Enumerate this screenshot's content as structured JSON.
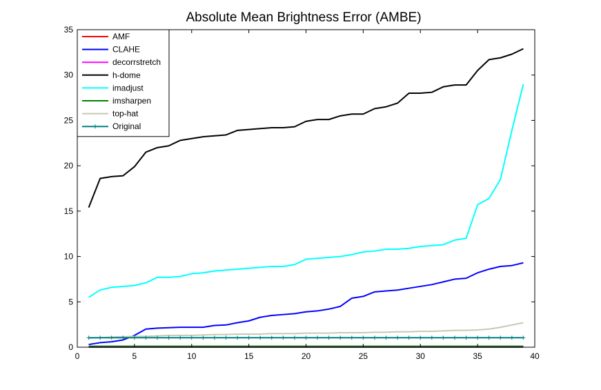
{
  "chart_data": {
    "type": "line",
    "title": "Absolute Mean Brightness Error (AMBE)",
    "xlabel": "",
    "ylabel": "",
    "xlim": [
      0,
      40
    ],
    "ylim": [
      0,
      35
    ],
    "xticks": [
      0,
      5,
      10,
      15,
      20,
      25,
      30,
      35,
      40
    ],
    "yticks": [
      0,
      5,
      10,
      15,
      20,
      25,
      30,
      35
    ],
    "grid": false,
    "legend_position": "top-left",
    "x": [
      1,
      2,
      3,
      4,
      5,
      6,
      7,
      8,
      9,
      10,
      11,
      12,
      13,
      14,
      15,
      16,
      17,
      18,
      19,
      20,
      21,
      22,
      23,
      24,
      25,
      26,
      27,
      28,
      29,
      30,
      31,
      32,
      33,
      34,
      35,
      36,
      37,
      38,
      39
    ],
    "series": [
      {
        "name": "AMF",
        "color": "#ff0000",
        "marker": "none",
        "values": [
          0.05,
          0.05,
          0.05,
          0.05,
          0.05,
          0.05,
          0.05,
          0.05,
          0.05,
          0.05,
          0.05,
          0.05,
          0.05,
          0.05,
          0.05,
          0.05,
          0.05,
          0.05,
          0.05,
          0.05,
          0.05,
          0.05,
          0.05,
          0.05,
          0.05,
          0.05,
          0.05,
          0.05,
          0.05,
          0.05,
          0.05,
          0.05,
          0.05,
          0.05,
          0.05,
          0.05,
          0.05,
          0.05,
          0.05
        ]
      },
      {
        "name": "CLAHE",
        "color": "#0000ff",
        "marker": "none",
        "values": [
          0.3,
          0.5,
          0.6,
          0.8,
          1.3,
          2.0,
          2.1,
          2.15,
          2.2,
          2.2,
          2.2,
          2.4,
          2.45,
          2.7,
          2.9,
          3.3,
          3.5,
          3.6,
          3.7,
          3.9,
          4.0,
          4.2,
          4.5,
          5.4,
          5.6,
          6.1,
          6.2,
          6.3,
          6.5,
          6.7,
          6.9,
          7.2,
          7.5,
          7.6,
          8.2,
          8.6,
          8.9,
          9.0,
          9.3
        ]
      },
      {
        "name": "decorrstretch",
        "color": "#ff00ff",
        "marker": "none",
        "values": [
          0.0,
          0.0,
          0.0,
          0.0,
          0.0,
          0.0,
          0.0,
          0.0,
          0.0,
          0.0,
          0.0,
          0.0,
          0.0,
          0.0,
          0.0,
          0.0,
          0.0,
          0.0,
          0.0,
          0.0,
          0.0,
          0.0,
          0.0,
          0.0,
          0.0,
          0.0,
          0.0,
          0.0,
          0.0,
          0.0,
          0.0,
          0.0,
          0.0,
          0.0,
          0.0,
          0.0,
          0.0,
          0.0,
          0.0
        ]
      },
      {
        "name": "h-dome",
        "color": "#000000",
        "marker": "none",
        "values": [
          15.4,
          18.6,
          18.8,
          18.9,
          19.9,
          21.5,
          22.0,
          22.2,
          22.8,
          23.0,
          23.2,
          23.3,
          23.4,
          23.9,
          24.0,
          24.1,
          24.2,
          24.2,
          24.3,
          24.9,
          25.1,
          25.1,
          25.5,
          25.7,
          25.7,
          26.3,
          26.5,
          26.9,
          28.0,
          28.0,
          28.1,
          28.7,
          28.9,
          28.9,
          30.5,
          31.7,
          31.9,
          32.3,
          32.9
        ]
      },
      {
        "name": "imadjust",
        "color": "#00ffff",
        "marker": "none",
        "values": [
          5.5,
          6.3,
          6.6,
          6.7,
          6.8,
          7.1,
          7.7,
          7.7,
          7.8,
          8.1,
          8.2,
          8.4,
          8.5,
          8.6,
          8.7,
          8.8,
          8.9,
          8.9,
          9.1,
          9.7,
          9.8,
          9.9,
          10.0,
          10.2,
          10.5,
          10.6,
          10.8,
          10.8,
          10.9,
          11.1,
          11.2,
          11.3,
          11.8,
          12.0,
          15.7,
          16.4,
          18.5,
          23.9,
          29.0
        ]
      },
      {
        "name": "imsharpen",
        "color": "#008000",
        "marker": "none",
        "values": [
          0.1,
          0.1,
          0.1,
          0.1,
          0.1,
          0.1,
          0.1,
          0.1,
          0.1,
          0.1,
          0.1,
          0.1,
          0.1,
          0.1,
          0.1,
          0.1,
          0.1,
          0.1,
          0.1,
          0.1,
          0.1,
          0.1,
          0.1,
          0.1,
          0.1,
          0.1,
          0.1,
          0.1,
          0.1,
          0.1,
          0.1,
          0.1,
          0.1,
          0.1,
          0.1,
          0.1,
          0.1,
          0.1,
          0.1
        ]
      },
      {
        "name": "top-hat",
        "color": "#c8c8b4",
        "marker": "none",
        "values": [
          1.0,
          1.05,
          1.1,
          1.15,
          1.2,
          1.2,
          1.25,
          1.3,
          1.3,
          1.3,
          1.35,
          1.4,
          1.4,
          1.45,
          1.45,
          1.45,
          1.5,
          1.5,
          1.5,
          1.55,
          1.55,
          1.55,
          1.6,
          1.6,
          1.6,
          1.65,
          1.65,
          1.7,
          1.7,
          1.75,
          1.75,
          1.8,
          1.85,
          1.85,
          1.9,
          2.0,
          2.2,
          2.45,
          2.7
        ]
      },
      {
        "name": "Original",
        "color": "#008080",
        "marker": "plus",
        "values": [
          1.05,
          1.05,
          1.05,
          1.05,
          1.05,
          1.05,
          1.05,
          1.05,
          1.05,
          1.05,
          1.05,
          1.05,
          1.05,
          1.05,
          1.05,
          1.05,
          1.05,
          1.05,
          1.05,
          1.05,
          1.05,
          1.05,
          1.05,
          1.05,
          1.05,
          1.05,
          1.05,
          1.05,
          1.05,
          1.05,
          1.05,
          1.05,
          1.05,
          1.05,
          1.05,
          1.05,
          1.05,
          1.05,
          1.05
        ]
      }
    ]
  }
}
